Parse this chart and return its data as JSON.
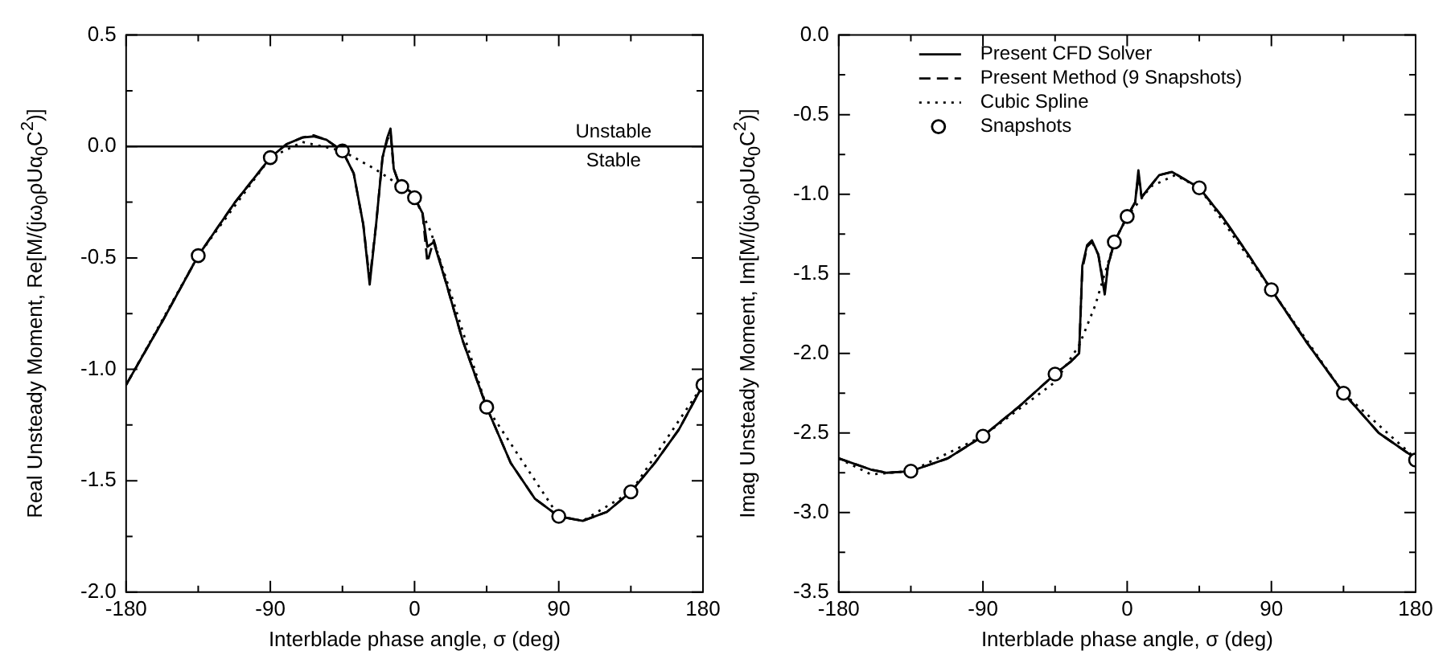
{
  "chart_data": [
    {
      "type": "line",
      "xlabel": "Interblade phase angle, σ (deg)",
      "ylabel": "Real Unsteady Moment, Re[M/(jω$_{0}$ρUα$_{0}$C$^{2}$)]",
      "xlim": [
        -180,
        180
      ],
      "ylim": [
        -2,
        0.5
      ],
      "xticks": [
        -180,
        {
          "value": -135,
          "label": null
        },
        -90,
        {
          "value": -45,
          "label": null
        },
        0,
        {
          "value": 45,
          "label": null
        },
        90,
        {
          "value": 135,
          "label": null
        },
        180
      ],
      "yticks": [
        {
          "value": -2,
          "label": "-2.0"
        },
        {
          "value": -1.75,
          "label": null
        },
        -1.5,
        {
          "value": -1.25,
          "label": null
        },
        {
          "value": -1,
          "label": "-1.0"
        },
        {
          "value": -0.75,
          "label": null
        },
        -0.5,
        {
          "value": -0.25,
          "label": null
        },
        {
          "value": 0,
          "label": "0.0"
        },
        {
          "value": 0.25,
          "label": null
        },
        0.5
      ],
      "legend": false,
      "ref_lines": [
        {
          "axis": "y",
          "value": 0,
          "color": "#000000",
          "line_style": "solid"
        }
      ],
      "annotations": [
        "Unstable",
        "Stable"
      ],
      "series": [
        {
          "type": "line",
          "color": "#000000",
          "line_style": "solid",
          "marker": "none",
          "x": [
            -180,
            -157,
            -135,
            -112,
            -90,
            -80,
            -70,
            -63,
            -55,
            -45,
            -38,
            -32,
            -28,
            -24,
            -20,
            -17,
            -15,
            -13,
            -10,
            -8,
            -3,
            0,
            5,
            8,
            12,
            20,
            30,
            45,
            60,
            75,
            90,
            105,
            120,
            135,
            150,
            165,
            180
          ],
          "values": [
            -1.07,
            -0.78,
            -0.49,
            -0.25,
            -0.05,
            0.01,
            0.04,
            0.045,
            0.03,
            -0.02,
            -0.12,
            -0.35,
            -0.62,
            -0.35,
            -0.05,
            0.04,
            0.08,
            -0.1,
            -0.16,
            -0.18,
            -0.2,
            -0.23,
            -0.3,
            -0.45,
            -0.43,
            -0.62,
            -0.87,
            -1.17,
            -1.42,
            -1.58,
            -1.66,
            -1.68,
            -1.64,
            -1.55,
            -1.42,
            -1.27,
            -1.07
          ]
        },
        {
          "type": "line",
          "color": "#000000",
          "line_style": "dashed",
          "marker": "none",
          "x": [
            -180,
            -157,
            -135,
            -112,
            -90,
            -80,
            -70,
            -63,
            -55,
            -45,
            -38,
            -32,
            -28,
            -24,
            -20,
            -17,
            -15,
            -13,
            -10,
            -8,
            -3,
            0,
            5,
            8,
            12,
            20,
            30,
            45,
            60,
            75,
            90,
            105,
            120,
            135,
            150,
            165,
            180
          ],
          "values": [
            -1.07,
            -0.78,
            -0.49,
            -0.25,
            -0.05,
            0.01,
            0.04,
            0.05,
            0.03,
            -0.02,
            -0.12,
            -0.35,
            -0.6,
            -0.35,
            -0.05,
            0.03,
            0.06,
            -0.1,
            -0.16,
            -0.18,
            -0.2,
            -0.23,
            -0.3,
            -0.52,
            -0.42,
            -0.62,
            -0.87,
            -1.17,
            -1.42,
            -1.58,
            -1.66,
            -1.68,
            -1.64,
            -1.55,
            -1.42,
            -1.27,
            -1.07
          ]
        },
        {
          "type": "line",
          "color": "#000000",
          "line_style": "dotted",
          "marker": "none",
          "x": [
            -180,
            -135,
            -90,
            -70,
            -45,
            -25,
            -8,
            0,
            10,
            20,
            45,
            90,
            105,
            135,
            180
          ],
          "values": [
            -1.07,
            -0.49,
            -0.05,
            0.02,
            -0.02,
            -0.1,
            -0.18,
            -0.23,
            -0.38,
            -0.6,
            -1.17,
            -1.66,
            -1.68,
            -1.55,
            -1.07
          ]
        },
        {
          "type": "scatter",
          "color": "#000000",
          "marker": "circle",
          "x": [
            -135,
            -90,
            -45,
            -8,
            0,
            45,
            90,
            135,
            180
          ],
          "values": [
            -0.49,
            -0.05,
            -0.02,
            -0.18,
            -0.23,
            -1.17,
            -1.66,
            -1.55,
            -1.07
          ]
        }
      ]
    },
    {
      "type": "line",
      "xlabel": "Interblade phase angle, σ (deg)",
      "ylabel": "Imag Unsteady Moment, Im[M/(jω$_{0}$ρUα$_{0}$C$^{2}$)]",
      "xlim": [
        -180,
        180
      ],
      "ylim": [
        -3.5,
        0
      ],
      "xticks": [
        -180,
        {
          "value": -135,
          "label": null
        },
        -90,
        {
          "value": -45,
          "label": null
        },
        0,
        {
          "value": 45,
          "label": null
        },
        90,
        {
          "value": 135,
          "label": null
        },
        180
      ],
      "yticks": [
        -3.5,
        {
          "value": -3.25,
          "label": null
        },
        {
          "value": -3,
          "label": "-3.0"
        },
        {
          "value": -2.75,
          "label": null
        },
        -2.5,
        {
          "value": -2.25,
          "label": null
        },
        {
          "value": -2,
          "label": "-2.0"
        },
        {
          "value": -1.75,
          "label": null
        },
        -1.5,
        {
          "value": -1.25,
          "label": null
        },
        {
          "value": -1,
          "label": "-1.0"
        },
        {
          "value": -0.75,
          "label": null
        },
        -0.5,
        {
          "value": -0.25,
          "label": null
        },
        {
          "value": 0,
          "label": "0.0"
        }
      ],
      "legend": "top left",
      "series": [
        {
          "name": "Present CFD Solver",
          "type": "line",
          "color": "#000000",
          "line_style": "solid",
          "marker": "none",
          "x": [
            -180,
            -160,
            -150,
            -135,
            -112,
            -90,
            -67,
            -45,
            -35,
            -30,
            -28,
            -25,
            -22,
            -18,
            -14,
            -12,
            -8,
            0,
            5,
            7,
            9,
            12,
            20,
            28,
            45,
            60,
            75,
            90,
            112,
            135,
            157,
            180
          ],
          "values": [
            -2.66,
            -2.73,
            -2.75,
            -2.74,
            -2.66,
            -2.52,
            -2.33,
            -2.13,
            -2.05,
            -2.0,
            -1.45,
            -1.32,
            -1.29,
            -1.38,
            -1.63,
            -1.45,
            -1.3,
            -1.14,
            -1.05,
            -0.85,
            -1.02,
            -0.98,
            -0.88,
            -0.86,
            -0.96,
            -1.15,
            -1.37,
            -1.6,
            -1.93,
            -2.25,
            -2.5,
            -2.66
          ]
        },
        {
          "name": "Present Method (9 Snapshots)",
          "type": "line",
          "color": "#000000",
          "line_style": "dashed",
          "marker": "none",
          "x": [
            -180,
            -160,
            -150,
            -135,
            -112,
            -90,
            -67,
            -45,
            -35,
            -30,
            -28,
            -25,
            -22,
            -18,
            -14,
            -12,
            -8,
            0,
            5,
            7,
            9,
            12,
            20,
            28,
            45,
            60,
            75,
            90,
            112,
            135,
            157,
            180
          ],
          "values": [
            -2.66,
            -2.73,
            -2.75,
            -2.74,
            -2.66,
            -2.52,
            -2.33,
            -2.13,
            -2.05,
            -2.0,
            -1.47,
            -1.33,
            -1.3,
            -1.38,
            -1.6,
            -1.45,
            -1.3,
            -1.14,
            -1.05,
            -0.88,
            -1.02,
            -0.98,
            -0.88,
            -0.86,
            -0.96,
            -1.15,
            -1.37,
            -1.6,
            -1.93,
            -2.25,
            -2.5,
            -2.66
          ]
        },
        {
          "name": "Cubic Spline",
          "type": "line",
          "color": "#000000",
          "line_style": "dotted",
          "marker": "none",
          "x": [
            -180,
            -160,
            -135,
            -90,
            -45,
            -30,
            -20,
            -8,
            0,
            15,
            30,
            45,
            90,
            135,
            180
          ],
          "values": [
            -2.66,
            -2.76,
            -2.74,
            -2.52,
            -2.18,
            -1.95,
            -1.7,
            -1.3,
            -1.14,
            -0.95,
            -0.88,
            -0.96,
            -1.6,
            -2.25,
            -2.66
          ]
        },
        {
          "name": "Snapshots",
          "type": "scatter",
          "color": "#000000",
          "marker": "circle",
          "x": [
            -135,
            -90,
            -45,
            -8,
            0,
            45,
            90,
            135,
            180
          ],
          "values": [
            -2.74,
            -2.52,
            -2.13,
            -1.3,
            -1.14,
            -0.96,
            -1.6,
            -2.25,
            -2.67
          ]
        }
      ]
    }
  ]
}
